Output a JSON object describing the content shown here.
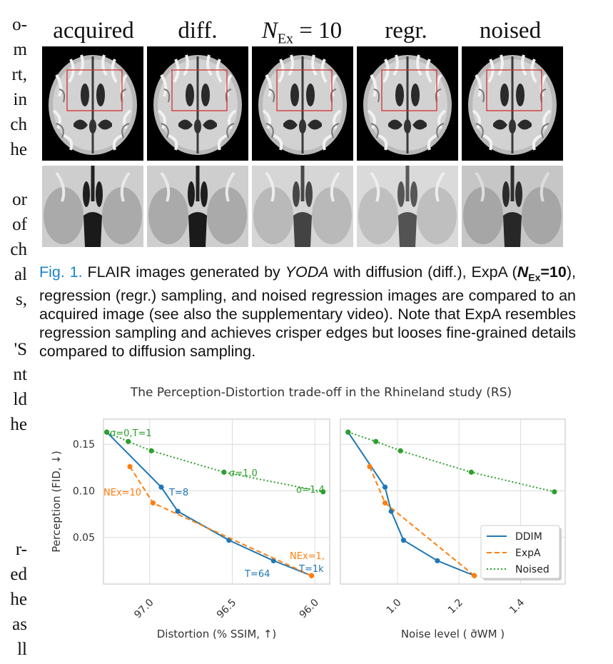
{
  "left_margin_fragments": [
    "o-",
    "m",
    "rt,",
    "in",
    "ch",
    "he",
    "or",
    "of",
    "ch",
    "al",
    "s,",
    "'S",
    "nt",
    "ld",
    "he",
    "r-",
    "ed",
    "he",
    "as",
    "ll"
  ],
  "figure": {
    "columns": [
      {
        "main": "acquired",
        "sub": ""
      },
      {
        "main": "diff.",
        "sub": ""
      },
      {
        "main": "N",
        "sub": "Ex",
        "rest": " = 10"
      },
      {
        "main": "regr.",
        "sub": ""
      },
      {
        "main": "noised",
        "sub": ""
      }
    ],
    "roi_color": "#d32f2f"
  },
  "caption": {
    "label": "Fig. 1.",
    "part1": " FLAIR images generated by ",
    "method": "YODA",
    "part2": " with diffusion (diff.), ExpA (",
    "nex_sym": "N",
    "nex_sub": "Ex",
    "nex_val": "=10",
    "part3": "), regression (regr.) sampling, and noised regression images are compared to an acquired image (see also the supplementary video). Note that ExpA resembles regression sampling and achieves crisper edges but looses fine-grained details compared to diffusion sampling."
  },
  "chart_data": [
    {
      "type": "line",
      "title": "The Perception-Distortion trade-off in the Rhineland study (RS)",
      "xlabel": "Distortion (% SSIM, ↑)",
      "ylabel": "Perception (FID, ↓)",
      "x_reversed": true,
      "xlim": [
        97.28,
        95.91
      ],
      "ylim": [
        0.0,
        0.177
      ],
      "xticks": [
        97.0,
        96.5,
        96.0
      ],
      "xtick_labels": [
        "97.0",
        "96.5",
        "96.0"
      ],
      "yticks": [
        0.05,
        0.1,
        0.15
      ],
      "ytick_labels": [
        "0.05",
        "0.10",
        "0.15"
      ],
      "grid": true,
      "series": [
        {
          "name": "DDIM",
          "color": "#1f77b4",
          "style": "solid",
          "x": [
            97.26,
            96.93,
            96.83,
            96.52,
            96.25,
            96.02
          ],
          "y": [
            0.163,
            0.104,
            0.078,
            0.047,
            0.025,
            0.009
          ]
        },
        {
          "name": "ExpA",
          "color": "#ff7f0e",
          "style": "dashed",
          "x": [
            97.12,
            96.98,
            96.02
          ],
          "y": [
            0.126,
            0.087,
            0.009
          ]
        },
        {
          "name": "Noised",
          "color": "#2ca02c",
          "style": "dotted",
          "x": [
            97.26,
            97.13,
            96.99,
            96.55,
            95.95
          ],
          "y": [
            0.163,
            0.153,
            0.143,
            0.12,
            0.099
          ]
        }
      ],
      "annotations": [
        {
          "text": "σ=0,T=1",
          "series": "Noised"
        },
        {
          "text": "σ=1.0",
          "series": "Noised"
        },
        {
          "text": "σ=1.4",
          "series": "Noised"
        },
        {
          "text": "T=8",
          "series": "DDIM"
        },
        {
          "text": "T=64",
          "series": "DDIM"
        },
        {
          "text": "T=1k",
          "series": "DDIM"
        },
        {
          "text": "NEx=10",
          "series": "ExpA"
        },
        {
          "text": "NEx=1,",
          "series": "ExpA"
        }
      ]
    },
    {
      "type": "line",
      "xlabel": "Noise level ( σ̄WM )",
      "ylabel": "",
      "xlim": [
        0.815,
        1.545
      ],
      "ylim": [
        0.0,
        0.177
      ],
      "xticks": [
        1.0,
        1.2,
        1.4
      ],
      "xtick_labels": [
        "1.0",
        "1.2",
        "1.4"
      ],
      "grid": true,
      "legend": "bottom-right",
      "series": [
        {
          "name": "DDIM",
          "color": "#1f77b4",
          "style": "solid",
          "x": [
            0.84,
            0.96,
            0.98,
            1.02,
            1.13,
            1.25
          ],
          "y": [
            0.163,
            0.104,
            0.078,
            0.047,
            0.025,
            0.009
          ]
        },
        {
          "name": "ExpA",
          "color": "#ff7f0e",
          "style": "dashed",
          "x": [
            0.91,
            0.96,
            1.25
          ],
          "y": [
            0.126,
            0.087,
            0.009
          ]
        },
        {
          "name": "Noised",
          "color": "#2ca02c",
          "style": "dotted",
          "x": [
            0.84,
            0.93,
            1.01,
            1.24,
            1.51
          ],
          "y": [
            0.163,
            0.153,
            0.143,
            0.12,
            0.099
          ]
        }
      ]
    }
  ]
}
